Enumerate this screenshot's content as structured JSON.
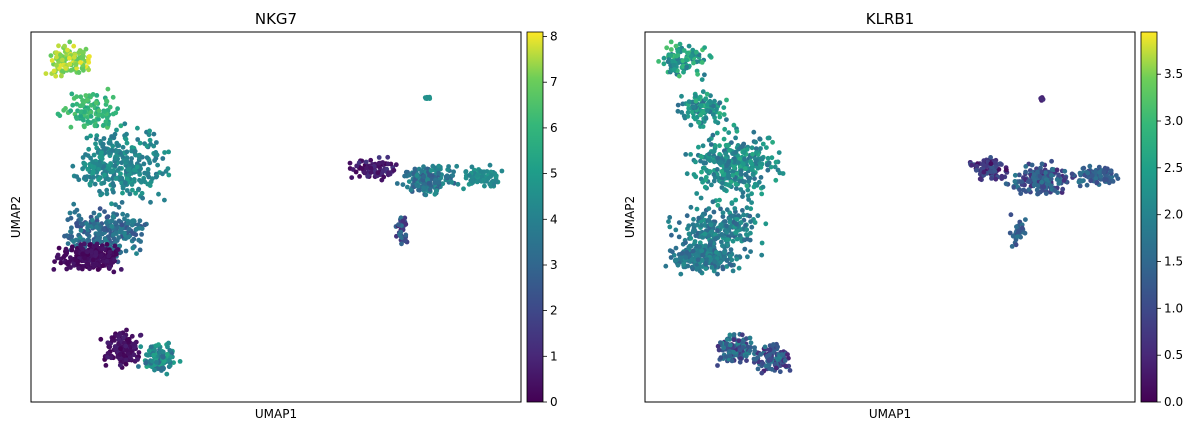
{
  "chart_data": [
    {
      "type": "scatter",
      "title": "NKG7",
      "xlabel": "UMAP1",
      "ylabel": "UMAP2",
      "xlim": [
        0,
        10
      ],
      "ylim": [
        0,
        10
      ],
      "colormap": "viridis",
      "color_range": [
        0,
        8.1
      ],
      "colorbar_ticks": [
        0,
        1,
        2,
        3,
        4,
        5,
        6,
        7,
        8
      ],
      "colorbar_tick_labels": [
        "0",
        "1",
        "2",
        "3",
        "4",
        "5",
        "6",
        "7",
        "8"
      ],
      "clusters": [
        {
          "name": "upper-left tip",
          "cx": 0.8,
          "cy": 9.2,
          "rx": 0.7,
          "ry": 0.6,
          "n": 110,
          "value_lo": 6.8,
          "value_hi": 8.0
        },
        {
          "name": "upper-left band",
          "cx": 1.2,
          "cy": 7.9,
          "rx": 0.7,
          "ry": 0.6,
          "n": 110,
          "value_lo": 5.3,
          "value_hi": 6.6
        },
        {
          "name": "left middle",
          "cx": 1.8,
          "cy": 6.4,
          "rx": 1.2,
          "ry": 1.2,
          "n": 330,
          "value_lo": 3.6,
          "value_hi": 5.0
        },
        {
          "name": "left lower",
          "cx": 1.5,
          "cy": 4.6,
          "rx": 1.2,
          "ry": 0.9,
          "n": 260,
          "value_lo": 2.2,
          "value_hi": 4.2
        },
        {
          "name": "left bottom",
          "cx": 1.2,
          "cy": 3.9,
          "rx": 0.9,
          "ry": 0.5,
          "n": 230,
          "value_lo": 0,
          "value_hi": 0.6
        },
        {
          "name": "bottom cluster left",
          "cx": 1.9,
          "cy": 1.4,
          "rx": 0.5,
          "ry": 0.6,
          "n": 140,
          "value_lo": 0,
          "value_hi": 0.8
        },
        {
          "name": "bottom cluster right",
          "cx": 2.6,
          "cy": 1.2,
          "rx": 0.5,
          "ry": 0.55,
          "n": 110,
          "value_lo": 3.0,
          "value_hi": 5.4
        },
        {
          "name": "right wing left",
          "cx": 7.0,
          "cy": 6.3,
          "rx": 0.6,
          "ry": 0.35,
          "n": 90,
          "value_lo": 0,
          "value_hi": 1.5
        },
        {
          "name": "right wing center",
          "cx": 8.1,
          "cy": 6.0,
          "rx": 0.8,
          "ry": 0.55,
          "n": 170,
          "value_lo": 2.6,
          "value_hi": 4.6
        },
        {
          "name": "right wing right",
          "cx": 9.2,
          "cy": 6.1,
          "rx": 0.6,
          "ry": 0.35,
          "n": 90,
          "value_lo": 4.0,
          "value_hi": 4.9
        },
        {
          "name": "right wing stem",
          "cx": 7.6,
          "cy": 4.6,
          "rx": 0.2,
          "ry": 0.5,
          "n": 35,
          "value_lo": 0.5,
          "value_hi": 3.5
        },
        {
          "name": "small top-right island",
          "cx": 8.1,
          "cy": 8.2,
          "rx": 0.08,
          "ry": 0.08,
          "n": 10,
          "value_lo": 4.5,
          "value_hi": 5.0
        }
      ]
    },
    {
      "type": "scatter",
      "title": "KLRB1",
      "xlabel": "UMAP1",
      "ylabel": "UMAP2",
      "xlim": [
        0,
        10
      ],
      "ylim": [
        0,
        10
      ],
      "colormap": "viridis",
      "color_range": [
        0,
        3.95
      ],
      "colorbar_ticks": [
        0,
        0.5,
        1,
        1.5,
        2,
        2.5,
        3,
        3.5
      ],
      "colorbar_tick_labels": [
        "0.0",
        "0.5",
        "1.0",
        "1.5",
        "2.0",
        "2.5",
        "3.0",
        "3.5"
      ],
      "clusters": [
        {
          "name": "upper-left tip",
          "cx": 0.8,
          "cy": 9.2,
          "rx": 0.7,
          "ry": 0.6,
          "n": 110,
          "value_lo": 1.8,
          "value_hi": 3.2
        },
        {
          "name": "upper-left band",
          "cx": 1.2,
          "cy": 7.9,
          "rx": 0.7,
          "ry": 0.6,
          "n": 110,
          "value_lo": 1.6,
          "value_hi": 2.9
        },
        {
          "name": "left middle",
          "cx": 1.8,
          "cy": 6.4,
          "rx": 1.2,
          "ry": 1.2,
          "n": 330,
          "value_lo": 1.6,
          "value_hi": 2.7
        },
        {
          "name": "left lower",
          "cx": 1.5,
          "cy": 4.6,
          "rx": 1.2,
          "ry": 0.9,
          "n": 260,
          "value_lo": 1.4,
          "value_hi": 2.4
        },
        {
          "name": "left bottom",
          "cx": 1.2,
          "cy": 3.9,
          "rx": 0.9,
          "ry": 0.5,
          "n": 230,
          "value_lo": 1.4,
          "value_hi": 2.2
        },
        {
          "name": "bottom cluster left",
          "cx": 1.9,
          "cy": 1.4,
          "rx": 0.5,
          "ry": 0.6,
          "n": 140,
          "value_lo": 0.6,
          "value_hi": 2.2
        },
        {
          "name": "bottom cluster right",
          "cx": 2.6,
          "cy": 1.2,
          "rx": 0.5,
          "ry": 0.55,
          "n": 110,
          "value_lo": 0.4,
          "value_hi": 2.0
        },
        {
          "name": "right wing left",
          "cx": 7.0,
          "cy": 6.3,
          "rx": 0.6,
          "ry": 0.35,
          "n": 90,
          "value_lo": 0,
          "value_hi": 1.2
        },
        {
          "name": "right wing center",
          "cx": 8.1,
          "cy": 6.0,
          "rx": 0.8,
          "ry": 0.55,
          "n": 170,
          "value_lo": 0.5,
          "value_hi": 1.8
        },
        {
          "name": "right wing right",
          "cx": 9.2,
          "cy": 6.1,
          "rx": 0.6,
          "ry": 0.35,
          "n": 90,
          "value_lo": 1.0,
          "value_hi": 1.8
        },
        {
          "name": "right wing stem",
          "cx": 7.6,
          "cy": 4.6,
          "rx": 0.2,
          "ry": 0.5,
          "n": 35,
          "value_lo": 1.0,
          "value_hi": 1.8
        },
        {
          "name": "small top-right island",
          "cx": 8.1,
          "cy": 8.2,
          "rx": 0.08,
          "ry": 0.08,
          "n": 10,
          "value_lo": 0.3,
          "value_hi": 0.6
        }
      ]
    }
  ]
}
